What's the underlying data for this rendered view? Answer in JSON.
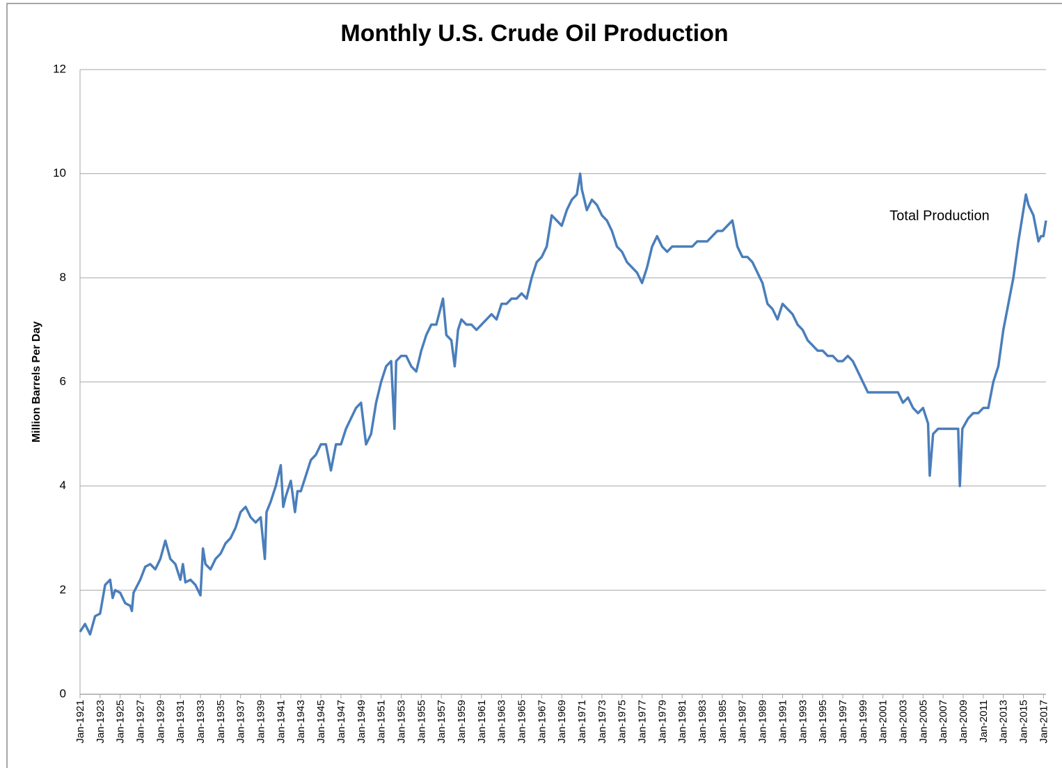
{
  "chart_data": {
    "type": "line",
    "title": "Monthly U.S. Crude Oil Production",
    "y_label": "Million Barrels Per Day",
    "x": [
      "1921-01",
      "1921-07",
      "1922-01",
      "1922-07",
      "1923-01",
      "1923-07",
      "1924-01",
      "1924-04",
      "1924-07",
      "1925-01",
      "1925-07",
      "1926-01",
      "1926-03",
      "1926-05",
      "1927-01",
      "1927-07",
      "1928-01",
      "1928-07",
      "1929-01",
      "1929-07",
      "1930-01",
      "1930-07",
      "1931-01",
      "1931-04",
      "1931-07",
      "1932-01",
      "1932-07",
      "1933-01",
      "1933-04",
      "1933-07",
      "1934-01",
      "1934-07",
      "1935-01",
      "1935-07",
      "1936-01",
      "1936-07",
      "1937-01",
      "1937-07",
      "1938-01",
      "1938-07",
      "1939-01",
      "1939-06",
      "1939-08",
      "1940-01",
      "1940-07",
      "1941-01",
      "1941-04",
      "1941-07",
      "1942-01",
      "1942-06",
      "1942-09",
      "1943-01",
      "1943-07",
      "1944-01",
      "1944-07",
      "1945-01",
      "1945-07",
      "1946-01",
      "1946-07",
      "1947-01",
      "1947-07",
      "1948-01",
      "1948-07",
      "1949-01",
      "1949-07",
      "1950-01",
      "1950-07",
      "1951-01",
      "1951-07",
      "1952-01",
      "1952-05",
      "1952-07",
      "1953-01",
      "1953-07",
      "1954-01",
      "1954-07",
      "1955-01",
      "1955-07",
      "1956-01",
      "1956-07",
      "1957-03",
      "1957-07",
      "1958-01",
      "1958-05",
      "1958-09",
      "1959-01",
      "1959-07",
      "1960-01",
      "1960-07",
      "1961-01",
      "1961-07",
      "1962-01",
      "1962-07",
      "1963-01",
      "1963-07",
      "1964-01",
      "1964-07",
      "1965-01",
      "1965-07",
      "1966-01",
      "1966-07",
      "1967-01",
      "1967-07",
      "1968-01",
      "1968-07",
      "1969-01",
      "1969-07",
      "1970-01",
      "1970-07",
      "1970-11",
      "1971-01",
      "1971-07",
      "1972-01",
      "1972-07",
      "1973-01",
      "1973-07",
      "1974-01",
      "1974-07",
      "1975-01",
      "1975-07",
      "1976-01",
      "1976-07",
      "1977-01",
      "1977-07",
      "1978-01",
      "1978-07",
      "1979-01",
      "1979-07",
      "1980-01",
      "1980-07",
      "1981-01",
      "1981-07",
      "1982-01",
      "1982-07",
      "1983-01",
      "1983-07",
      "1984-01",
      "1984-07",
      "1985-01",
      "1985-07",
      "1986-01",
      "1986-07",
      "1987-01",
      "1987-07",
      "1988-01",
      "1988-07",
      "1989-01",
      "1989-07",
      "1990-01",
      "1990-07",
      "1991-01",
      "1991-07",
      "1992-01",
      "1992-07",
      "1993-01",
      "1993-07",
      "1994-01",
      "1994-07",
      "1995-01",
      "1995-07",
      "1996-01",
      "1996-07",
      "1997-01",
      "1997-07",
      "1998-01",
      "1998-07",
      "1999-01",
      "1999-07",
      "2000-01",
      "2000-07",
      "2001-01",
      "2001-07",
      "2002-01",
      "2002-07",
      "2003-01",
      "2003-07",
      "2004-01",
      "2004-07",
      "2005-01",
      "2005-07",
      "2005-09",
      "2006-01",
      "2006-07",
      "2007-01",
      "2007-07",
      "2008-01",
      "2008-07",
      "2008-09",
      "2008-12",
      "2009-07",
      "2010-01",
      "2010-07",
      "2011-01",
      "2011-07",
      "2012-01",
      "2012-07",
      "2013-01",
      "2013-07",
      "2014-01",
      "2014-07",
      "2015-01",
      "2015-04",
      "2015-07",
      "2016-01",
      "2016-07",
      "2016-10",
      "2017-01",
      "2017-04"
    ],
    "series": [
      {
        "name": "Total Production",
        "color": "#4a7ebb",
        "values": [
          1.2,
          1.35,
          1.15,
          1.5,
          1.55,
          2.1,
          2.2,
          1.85,
          2.0,
          1.95,
          1.75,
          1.7,
          1.6,
          1.95,
          2.2,
          2.45,
          2.5,
          2.4,
          2.6,
          2.95,
          2.6,
          2.5,
          2.2,
          2.5,
          2.15,
          2.2,
          2.1,
          1.9,
          2.8,
          2.5,
          2.4,
          2.6,
          2.7,
          2.9,
          3.0,
          3.2,
          3.5,
          3.6,
          3.4,
          3.3,
          3.4,
          2.6,
          3.5,
          3.7,
          4.0,
          4.4,
          3.6,
          3.8,
          4.1,
          3.5,
          3.9,
          3.9,
          4.2,
          4.5,
          4.6,
          4.8,
          4.8,
          4.3,
          4.8,
          4.8,
          5.1,
          5.3,
          5.5,
          5.6,
          4.8,
          5.0,
          5.6,
          6.0,
          6.3,
          6.4,
          5.1,
          6.4,
          6.5,
          6.5,
          6.3,
          6.2,
          6.6,
          6.9,
          7.1,
          7.1,
          7.6,
          6.9,
          6.8,
          6.3,
          7.0,
          7.2,
          7.1,
          7.1,
          7.0,
          7.1,
          7.2,
          7.3,
          7.2,
          7.5,
          7.5,
          7.6,
          7.6,
          7.7,
          7.6,
          8.0,
          8.3,
          8.4,
          8.6,
          9.2,
          9.1,
          9.0,
          9.3,
          9.5,
          9.6,
          10.0,
          9.7,
          9.3,
          9.5,
          9.4,
          9.2,
          9.1,
          8.9,
          8.6,
          8.5,
          8.3,
          8.2,
          8.1,
          7.9,
          8.2,
          8.6,
          8.8,
          8.6,
          8.5,
          8.6,
          8.6,
          8.6,
          8.6,
          8.6,
          8.7,
          8.7,
          8.7,
          8.8,
          8.9,
          8.9,
          9.0,
          9.1,
          8.6,
          8.4,
          8.4,
          8.3,
          8.1,
          7.9,
          7.5,
          7.4,
          7.2,
          7.5,
          7.4,
          7.3,
          7.1,
          7.0,
          6.8,
          6.7,
          6.6,
          6.6,
          6.5,
          6.5,
          6.4,
          6.4,
          6.5,
          6.4,
          6.2,
          6.0,
          5.8,
          5.8,
          5.8,
          5.8,
          5.8,
          5.8,
          5.8,
          5.6,
          5.7,
          5.5,
          5.4,
          5.5,
          5.2,
          4.2,
          5.0,
          5.1,
          5.1,
          5.1,
          5.1,
          5.1,
          4.0,
          5.1,
          5.3,
          5.4,
          5.4,
          5.5,
          5.5,
          6.0,
          6.3,
          7.0,
          7.5,
          8.0,
          8.7,
          9.3,
          9.6,
          9.4,
          9.2,
          8.7,
          8.8,
          8.8,
          9.1
        ]
      }
    ],
    "xlim": [
      "1921-01",
      "2017-04"
    ],
    "xticks": [
      {
        "value": "1921-01",
        "label": "Jan-1921"
      },
      {
        "value": "1923-01",
        "label": "Jan-1923"
      },
      {
        "value": "1925-01",
        "label": "Jan-1925"
      },
      {
        "value": "1927-01",
        "label": "Jan-1927"
      },
      {
        "value": "1929-01",
        "label": "Jan-1929"
      },
      {
        "value": "1931-01",
        "label": "Jan-1931"
      },
      {
        "value": "1933-01",
        "label": "Jan-1933"
      },
      {
        "value": "1935-01",
        "label": "Jan-1935"
      },
      {
        "value": "1937-01",
        "label": "Jan-1937"
      },
      {
        "value": "1939-01",
        "label": "Jan-1939"
      },
      {
        "value": "1941-01",
        "label": "Jan-1941"
      },
      {
        "value": "1943-01",
        "label": "Jan-1943"
      },
      {
        "value": "1945-01",
        "label": "Jan-1945"
      },
      {
        "value": "1947-01",
        "label": "Jan-1947"
      },
      {
        "value": "1949-01",
        "label": "Jan-1949"
      },
      {
        "value": "1951-01",
        "label": "Jan-1951"
      },
      {
        "value": "1953-01",
        "label": "Jan-1953"
      },
      {
        "value": "1955-01",
        "label": "Jan-1955"
      },
      {
        "value": "1957-01",
        "label": "Jan-1957"
      },
      {
        "value": "1959-01",
        "label": "Jan-1959"
      },
      {
        "value": "1961-01",
        "label": "Jan-1961"
      },
      {
        "value": "1963-01",
        "label": "Jan-1963"
      },
      {
        "value": "1965-01",
        "label": "Jan-1965"
      },
      {
        "value": "1967-01",
        "label": "Jan-1967"
      },
      {
        "value": "1969-01",
        "label": "Jan-1969"
      },
      {
        "value": "1971-01",
        "label": "Jan-1971"
      },
      {
        "value": "1973-01",
        "label": "Jan-1973"
      },
      {
        "value": "1975-01",
        "label": "Jan-1975"
      },
      {
        "value": "1977-01",
        "label": "Jan-1977"
      },
      {
        "value": "1979-01",
        "label": "Jan-1979"
      },
      {
        "value": "1981-01",
        "label": "Jan-1981"
      },
      {
        "value": "1983-01",
        "label": "Jan-1983"
      },
      {
        "value": "1985-01",
        "label": "Jan-1985"
      },
      {
        "value": "1987-01",
        "label": "Jan-1987"
      },
      {
        "value": "1989-01",
        "label": "Jan-1989"
      },
      {
        "value": "1991-01",
        "label": "Jan-1991"
      },
      {
        "value": "1993-01",
        "label": "Jan-1993"
      },
      {
        "value": "1995-01",
        "label": "Jan-1995"
      },
      {
        "value": "1997-01",
        "label": "Jan-1997"
      },
      {
        "value": "1999-01",
        "label": "Jan-1999"
      },
      {
        "value": "2001-01",
        "label": "Jan-2001"
      },
      {
        "value": "2003-01",
        "label": "Jan-2003"
      },
      {
        "value": "2005-01",
        "label": "Jan-2005"
      },
      {
        "value": "2007-01",
        "label": "Jan-2007"
      },
      {
        "value": "2009-01",
        "label": "Jan-2009"
      },
      {
        "value": "2011-01",
        "label": "Jan-2011"
      },
      {
        "value": "2013-01",
        "label": "Jan-2013"
      },
      {
        "value": "2015-01",
        "label": "Jan-2015"
      },
      {
        "value": "2017-01",
        "label": "Jan-2017"
      }
    ],
    "ylim": [
      0,
      12
    ],
    "yticks": [
      0,
      2,
      4,
      6,
      8,
      10,
      12
    ],
    "grid": true
  }
}
